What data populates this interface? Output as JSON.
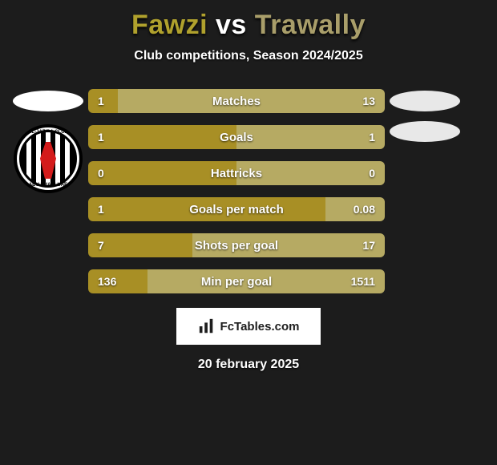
{
  "title": {
    "player1": "Fawzi",
    "vs": "vs",
    "player2": "Trawally",
    "color1": "#b0a12d",
    "vsColor": "#ffffff",
    "color2": "#a99e6a"
  },
  "subtitle": "Club competitions, Season 2024/2025",
  "badge": {
    "topText": "AL-JAZIRA CLUB",
    "botText": "ABU DHABI-UAE"
  },
  "colors": {
    "left": "#a88f25",
    "right": "#b6aa63",
    "barHeight": 30,
    "radius": 6
  },
  "stats": [
    {
      "label": "Matches",
      "l": "1",
      "r": "13",
      "lw": 10,
      "rw": 90
    },
    {
      "label": "Goals",
      "l": "1",
      "r": "1",
      "lw": 50,
      "rw": 50
    },
    {
      "label": "Hattricks",
      "l": "0",
      "r": "0",
      "lw": 50,
      "rw": 50
    },
    {
      "label": "Goals per match",
      "l": "1",
      "r": "0.08",
      "lw": 80,
      "rw": 20
    },
    {
      "label": "Shots per goal",
      "l": "7",
      "r": "17",
      "lw": 35,
      "rw": 65
    },
    {
      "label": "Min per goal",
      "l": "136",
      "r": "1511",
      "lw": 20,
      "rw": 80
    }
  ],
  "footer": {
    "site": "FcTables.com",
    "date": "20 february 2025"
  }
}
